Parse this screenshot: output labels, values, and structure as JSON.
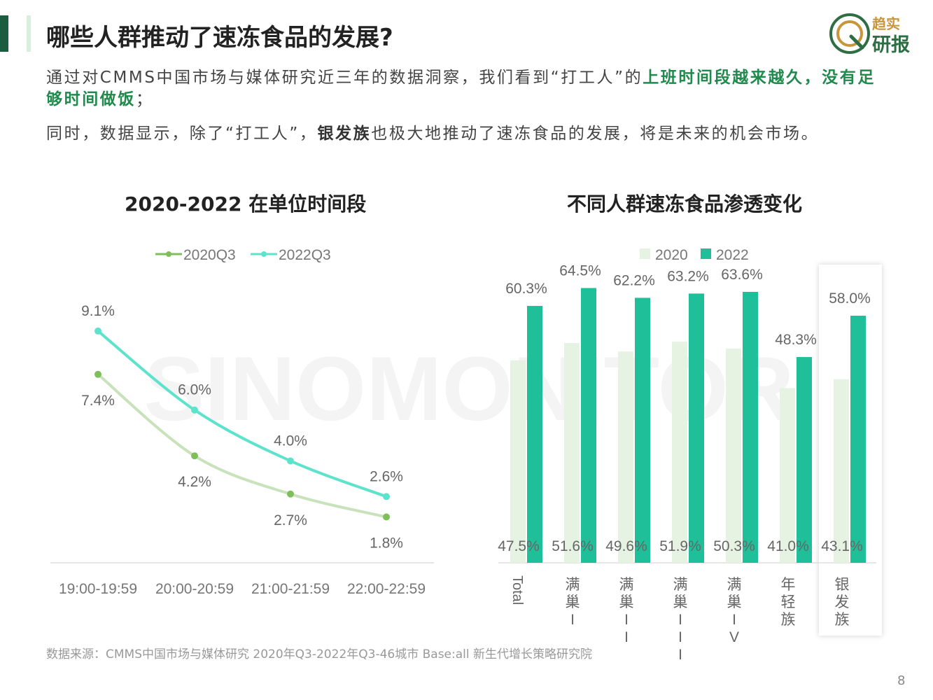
{
  "page": {
    "title": "哪些人群推动了速冻食品的发展?",
    "logo_line1": "趋实",
    "logo_line2": "研报",
    "para1": {
      "text": "通过对CMMS中国市场与媒体研究近三年的数据洞察，我们看到“打工人”的",
      "highlight": "上班时间段越来越久，没有足够时间做饭",
      "end": "；"
    },
    "para2": {
      "start": "同时，数据显示，除了“打工人”，",
      "highlight": "银发族",
      "end": "也极大地推动了速冻食品的发展，将是未来的机会市场。"
    },
    "footer": "数据来源：CMMS中国市场与媒体研究 2020年Q3-2022年Q3-46城市 Base:all   新生代增长策略研究院",
    "page_number": "8",
    "watermark": "SINOMONITOR"
  },
  "colors": {
    "accent_dark": "#1b5e3f",
    "accent_light": "#d9eedd",
    "line_2020": "#7fbf5a",
    "line_2020_curve": "#c8e2bb",
    "line_2022": "#5de3cc",
    "bar_2020": "#e6f3e2",
    "bar_2022": "#1fbf9a",
    "highlight_green": "#1f8a4c",
    "logo_green": "#2e6e45",
    "logo_gold": "#c8953a"
  },
  "chart_data": [
    {
      "type": "line",
      "title": "2020-2022 在单位时间段",
      "categories": [
        "19:00-19:59",
        "20:00-20:59",
        "21:00-21:59",
        "22:00-22:59"
      ],
      "series": [
        {
          "name": "2020Q3",
          "values": [
            7.4,
            4.2,
            2.7,
            1.8
          ],
          "labels": [
            "7.4%",
            "4.2%",
            "2.7%",
            "1.8%"
          ]
        },
        {
          "name": "2022Q3",
          "values": [
            9.1,
            6.0,
            4.0,
            2.6
          ],
          "labels": [
            "9.1%",
            "6.0%",
            "4.0%",
            "2.6%"
          ]
        }
      ],
      "ylim": [
        0,
        10.5
      ],
      "legend": "top"
    },
    {
      "type": "bar",
      "title": "不同人群速冻食品渗透变化",
      "categories": [
        "Total",
        "满巢I",
        "满巢II",
        "满巢III",
        "满巢IV",
        "年轻族",
        "银发族"
      ],
      "series": [
        {
          "name": "2020",
          "values": [
            47.5,
            51.6,
            49.6,
            51.9,
            50.3,
            41.0,
            43.1
          ],
          "labels": [
            "47.5%",
            "51.6%",
            "49.6%",
            "51.9%",
            "50.3%",
            "41.0%",
            "43.1%"
          ]
        },
        {
          "name": "2022",
          "values": [
            60.3,
            64.5,
            62.2,
            63.2,
            63.6,
            48.3,
            58.0
          ],
          "labels": [
            "60.3%",
            "64.5%",
            "62.2%",
            "63.2%",
            "63.6%",
            "48.3%",
            "58.0%"
          ]
        }
      ],
      "ylim": [
        0,
        70
      ],
      "highlighted_category": "银发族",
      "legend": "top"
    }
  ]
}
